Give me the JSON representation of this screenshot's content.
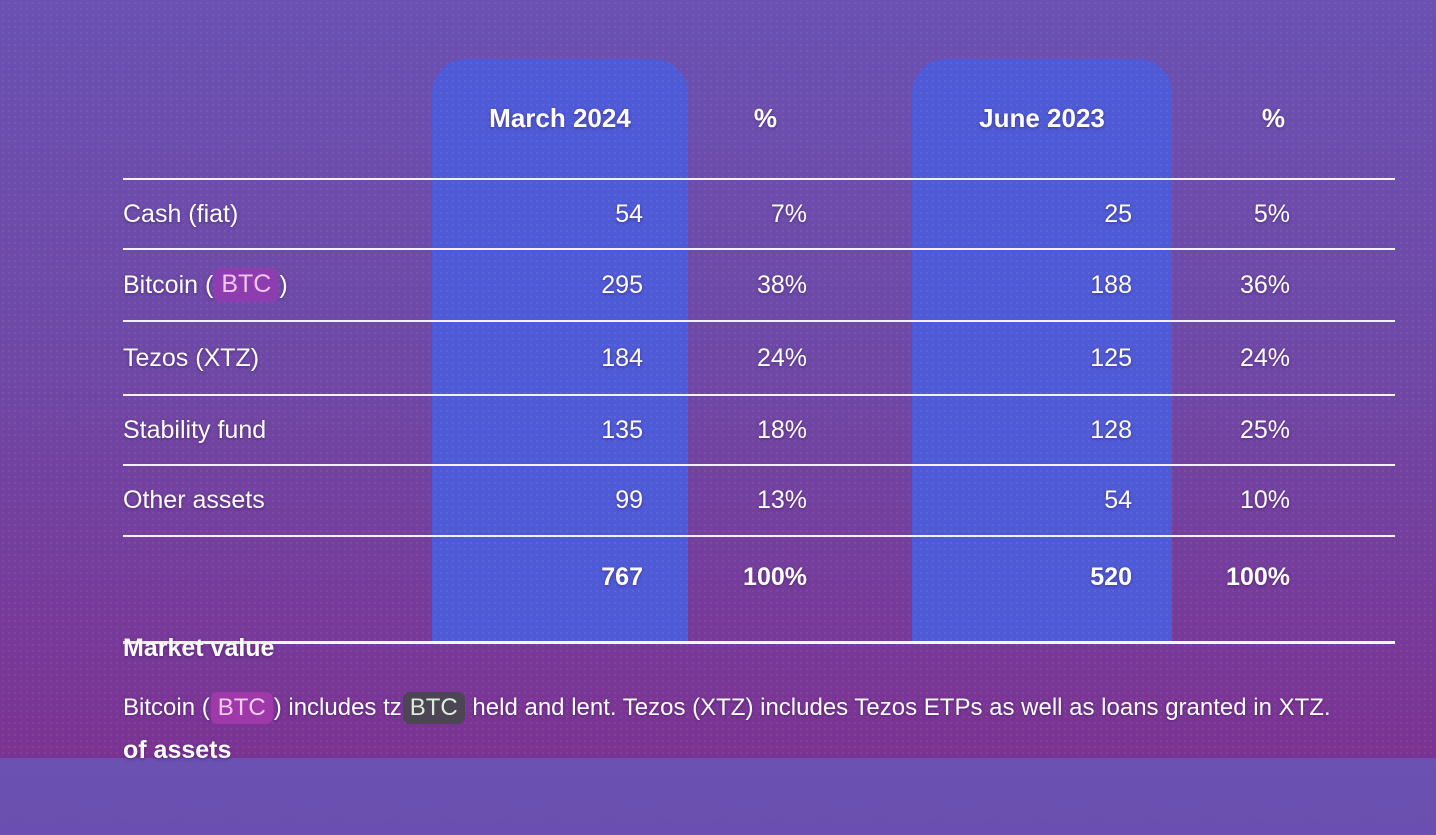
{
  "colors": {
    "background_top": "#6A51B2",
    "background_bottom": "#7B3392",
    "column_panel_blue": "#4F5AD6",
    "separator_line": "#FFFFFF",
    "label_btc_highlight": "#8E3DB0",
    "footnote_btc_highlight": "#9F39A9",
    "footnote_tzbtc_highlight": "#4C4553"
  },
  "table": {
    "headers": {
      "march": "March 2024",
      "pct_march": "%",
      "june": "June 2023",
      "pct_june": "%"
    },
    "rows": [
      {
        "label": {
          "pre": "Cash (fiat)",
          "highlight": "",
          "post": ""
        },
        "march": "54",
        "pct_march": "7%",
        "june": "25",
        "pct_june": "5%"
      },
      {
        "label": {
          "pre": "Bitcoin (",
          "highlight": "BTC",
          "post": ")"
        },
        "march": "295",
        "pct_march": "38%",
        "june": "188",
        "pct_june": "36%"
      },
      {
        "label": {
          "pre": "Tezos (XTZ)",
          "highlight": "",
          "post": ""
        },
        "march": "184",
        "pct_march": "24%",
        "june": "125",
        "pct_june": "24%"
      },
      {
        "label": {
          "pre": "Stability fund",
          "highlight": "",
          "post": ""
        },
        "march": "135",
        "pct_march": "18%",
        "june": "128",
        "pct_june": "25%"
      },
      {
        "label": {
          "pre": "Other assets",
          "highlight": "",
          "post": ""
        },
        "march": "99",
        "pct_march": "13%",
        "june": "54",
        "pct_june": "10%"
      },
      {
        "label": {
          "line1": "Market value",
          "line2": "of assets"
        },
        "march": "767",
        "pct_march": "100%",
        "june": "520",
        "pct_june": "100%"
      }
    ]
  },
  "footnote": {
    "part1": "Bitcoin (",
    "highlight_btc": "BTC",
    "part2": ") includes tz",
    "highlight_tzbtc": "BTC",
    "part3": " held and lent. Tezos (XTZ) includes Tezos ETPs as well as loans granted in XTZ."
  },
  "chart_data": {
    "type": "table",
    "title": "",
    "columns": [
      "",
      "March 2024",
      "%",
      "June 2023",
      "%"
    ],
    "rows": [
      [
        "Cash (fiat)",
        54,
        "7%",
        25,
        "5%"
      ],
      [
        "Bitcoin (BTC)",
        295,
        "38%",
        188,
        "36%"
      ],
      [
        "Tezos (XTZ)",
        184,
        "24%",
        125,
        "24%"
      ],
      [
        "Stability fund",
        135,
        "18%",
        128,
        "25%"
      ],
      [
        "Other assets",
        99,
        "13%",
        54,
        "10%"
      ],
      [
        "Market value of assets",
        767,
        "100%",
        520,
        "100%"
      ]
    ],
    "footnote": "Bitcoin (BTC) includes tzBTC held and lent. Tezos (XTZ) includes Tezos ETPs as well as loans granted in XTZ.",
    "layout_hints": {
      "highlighted_columns": [
        "March 2024",
        "June 2023"
      ],
      "total_row_bold": true
    }
  }
}
